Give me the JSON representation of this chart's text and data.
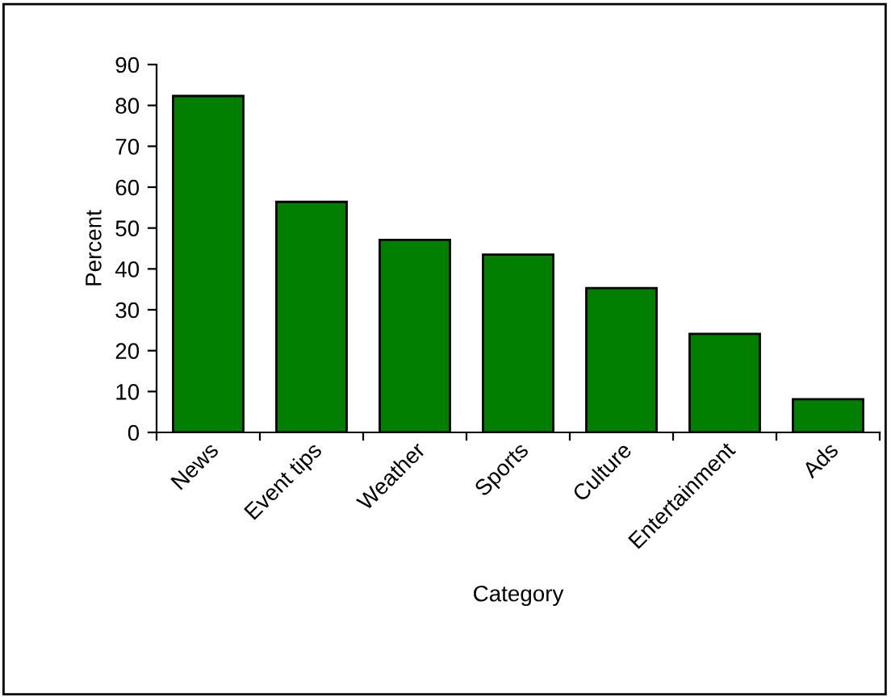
{
  "chart_data": {
    "type": "bar",
    "xlabel": "Category",
    "ylabel": "Percent",
    "categories": [
      "News",
      "Event tips",
      "Weather",
      "Sports",
      "Culture",
      "Entertainment",
      "Ads"
    ],
    "values": [
      82.3,
      56.4,
      47.1,
      43.5,
      35.3,
      24.1,
      8.1
    ],
    "color": "#007f00",
    "ylim": [
      0,
      90
    ],
    "yticks": [
      0,
      10,
      20,
      30,
      40,
      50,
      60,
      70,
      80,
      90
    ],
    "grid": false,
    "legend": false
  }
}
